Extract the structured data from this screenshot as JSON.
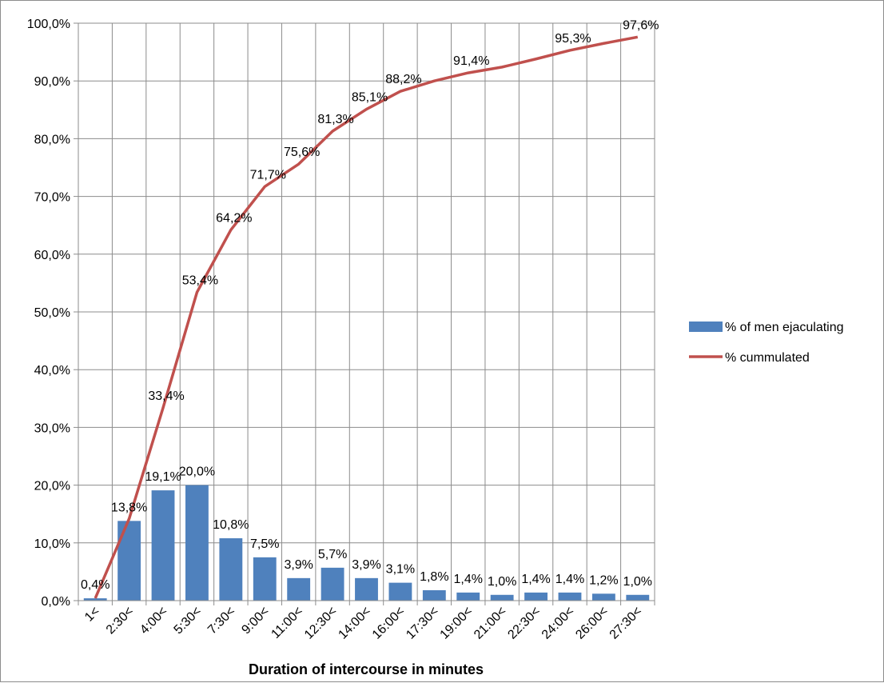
{
  "chart_data": {
    "type": "bar",
    "categories": [
      "1<",
      "2:30<",
      "4:00<",
      "5:30<",
      "7:30<",
      "9:00<",
      "11:00<",
      "12:30<",
      "14:00<",
      "16:00<",
      "17:30<",
      "19:00<",
      "21:00<",
      "22:30<",
      "24:00<",
      "26:00<",
      "27:30<"
    ],
    "series": [
      {
        "name": "% of men ejaculating",
        "type": "bar",
        "color": "#4f81bd",
        "values": [
          0.4,
          13.8,
          19.1,
          20.0,
          10.8,
          7.5,
          3.9,
          5.7,
          3.9,
          3.1,
          1.8,
          1.4,
          1.0,
          1.4,
          1.4,
          1.2,
          1.0
        ],
        "labels": [
          "0,4%",
          "13,8%",
          "19,1%",
          "20,0%",
          "10,8%",
          "7,5%",
          "3,9%",
          "5,7%",
          "3,9%",
          "3,1%",
          "1,8%",
          "1,4%",
          "1,0%",
          "1,4%",
          "1,4%",
          "1,2%",
          "1,0%"
        ]
      },
      {
        "name": "% cummulated",
        "type": "line",
        "color": "#c0504d",
        "values": [
          0.4,
          14.2,
          33.4,
          53.4,
          64.2,
          71.7,
          75.6,
          81.3,
          85.1,
          88.2,
          90.0,
          91.4,
          92.4,
          93.8,
          95.3,
          96.5,
          97.6
        ],
        "labels": [
          "",
          "",
          "33,4%",
          "53,4%",
          "64,2%",
          "71,7%",
          "75,6%",
          "81,3%",
          "85,1%",
          "88,2%",
          "",
          "91,4%",
          "",
          "",
          "95,3%",
          "",
          "97,6%"
        ]
      }
    ],
    "xlabel": "Duration of intercourse in minutes",
    "ylabel": "",
    "ylim": [
      0,
      100
    ],
    "yticks": [
      {
        "value": 0,
        "label": "0,0%"
      },
      {
        "value": 10,
        "label": "10,0%"
      },
      {
        "value": 20,
        "label": "20,0%"
      },
      {
        "value": 30,
        "label": "30,0%"
      },
      {
        "value": 40,
        "label": "40,0%"
      },
      {
        "value": 50,
        "label": "50,0%"
      },
      {
        "value": 60,
        "label": "60,0%"
      },
      {
        "value": 70,
        "label": "70,0%"
      },
      {
        "value": 80,
        "label": "80,0%"
      },
      {
        "value": 90,
        "label": "90,0%"
      },
      {
        "value": 100,
        "label": "100,0%"
      }
    ],
    "grid": true,
    "legend": "right"
  }
}
